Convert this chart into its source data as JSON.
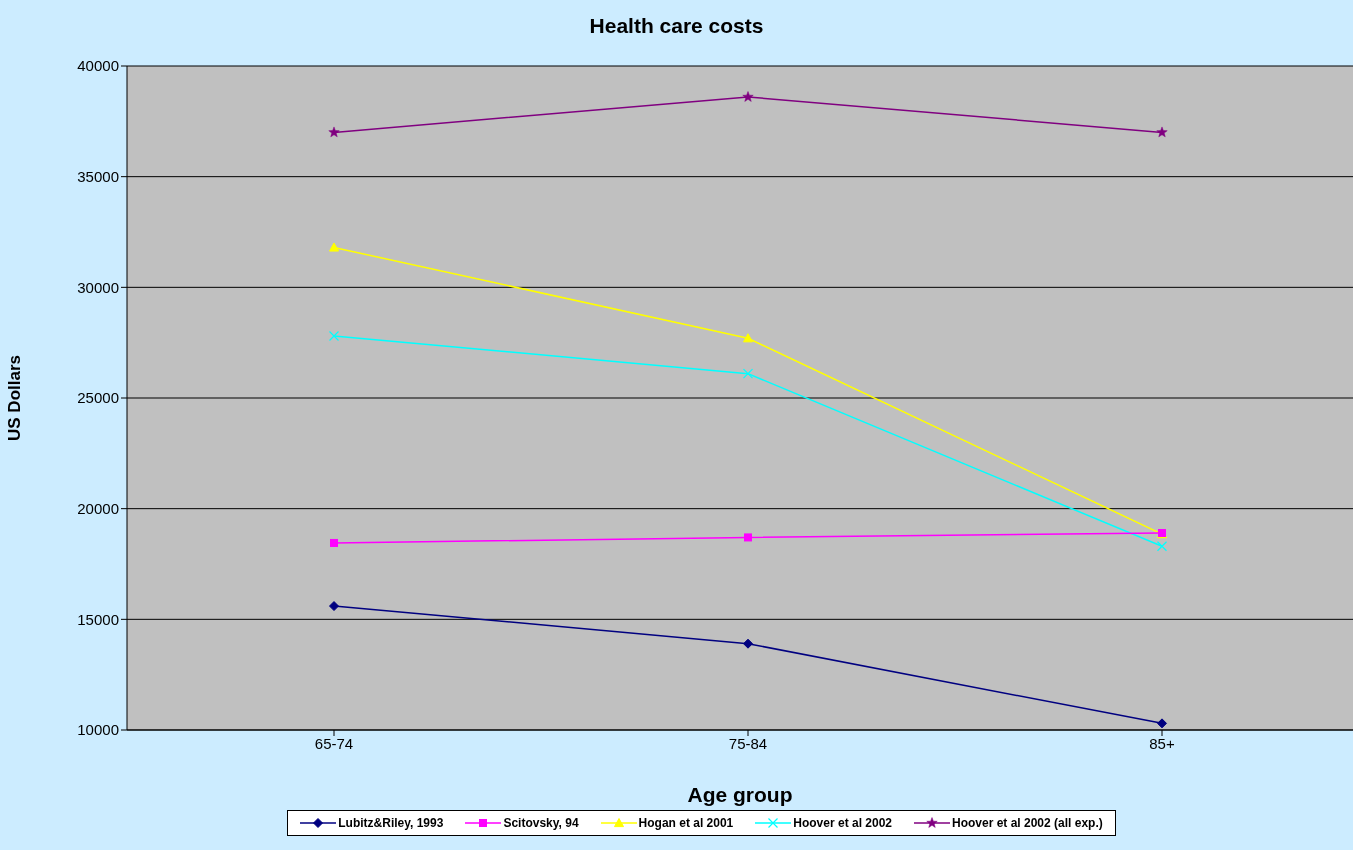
{
  "chart_data": {
    "type": "line",
    "title": "Health care costs",
    "xlabel": "Age group",
    "ylabel": "US Dollars",
    "categories": [
      "65-74",
      "75-84",
      "85+"
    ],
    "series": [
      {
        "name": "Lubitz&Riley, 1993",
        "color": "#000080",
        "marker": "diamond",
        "values": [
          15600,
          13900,
          10300
        ]
      },
      {
        "name": "Scitovsky, 94",
        "color": "#ff00ff",
        "marker": "square",
        "values": [
          18450,
          18700,
          18900
        ]
      },
      {
        "name": "Hogan et al 2001",
        "color": "#ffff00",
        "marker": "triangle",
        "values": [
          31800,
          27700,
          18850
        ]
      },
      {
        "name": "Hoover et al 2002",
        "color": "#00ffff",
        "marker": "cross",
        "values": [
          27800,
          26100,
          18300
        ]
      },
      {
        "name": "Hoover et al 2002 (all exp.)",
        "color": "#800080",
        "marker": "star",
        "values": [
          37000,
          38600,
          37000
        ]
      }
    ],
    "ylim": [
      10000,
      40000
    ],
    "yticks": [
      10000,
      15000,
      20000,
      25000,
      30000,
      35000,
      40000
    ],
    "grid": "y",
    "legend": "bottom"
  }
}
